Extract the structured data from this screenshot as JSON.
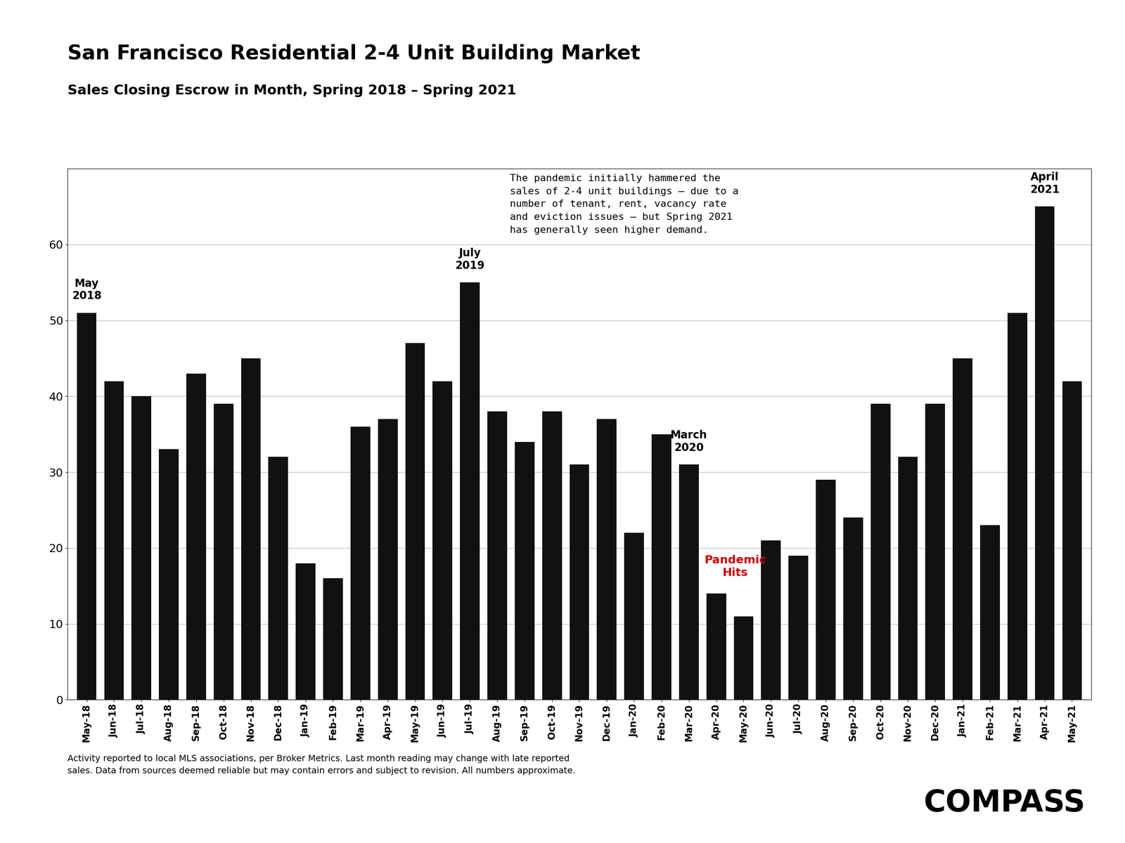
{
  "chart_data": {
    "type": "bar",
    "title": "San Francisco Residential 2-4 Unit Building Market",
    "subtitle": "Sales Closing Escrow in Month, Spring 2018 – Spring 2021",
    "categories": [
      "May-18",
      "Jun-18",
      "Jul-18",
      "Aug-18",
      "Sep-18",
      "Oct-18",
      "Nov-18",
      "Dec-18",
      "Jan-19",
      "Feb-19",
      "Mar-19",
      "Apr-19",
      "May-19",
      "Jun-19",
      "Jul-19",
      "Aug-19",
      "Sep-19",
      "Oct-19",
      "Nov-19",
      "Dec-19",
      "Jan-20",
      "Feb-20",
      "Mar-20",
      "Apr-20",
      "May-20",
      "Jun-20",
      "Jul-20",
      "Aug-20",
      "Sep-20",
      "Oct-20",
      "Nov-20",
      "Dec-20",
      "Jan-21",
      "Feb-21",
      "Mar-21",
      "Apr-21",
      "May-21"
    ],
    "values": [
      51,
      42,
      40,
      33,
      43,
      39,
      45,
      32,
      18,
      16,
      36,
      37,
      47,
      42,
      55,
      38,
      34,
      38,
      31,
      37,
      22,
      35,
      31,
      14,
      11,
      21,
      19,
      29,
      24,
      39,
      32,
      39,
      45,
      23,
      51,
      65,
      42
    ],
    "color": "#111111",
    "ylim": [
      0,
      70
    ],
    "yticks": [
      0,
      10,
      20,
      30,
      40,
      50,
      60
    ],
    "grid": true,
    "annotations": [
      {
        "text": "May\n2018",
        "category": "May-18"
      },
      {
        "text": "July\n2019",
        "category": "Jul-19"
      },
      {
        "text": "March\n2020",
        "category": "Mar-20"
      },
      {
        "text": "Pandemic\nHits",
        "category": "Apr-20",
        "color": "#cc0000"
      },
      {
        "text": "April\n2021",
        "category": "Apr-21"
      }
    ],
    "note": "The pandemic initially hammered the\nsales of 2-4 unit buildings – due to a\nnumber of tenant, rent, vacancy rate\nand eviction issues – but Spring 2021\nhas generally seen higher demand.",
    "footnote": "Activity reported to local MLS associations, per Broker Metrics. Last month reading may change with late reported\nsales. Data from sources deemed reliable but may contain errors and subject to revision. All numbers approximate.",
    "logo": "COMPASS"
  }
}
